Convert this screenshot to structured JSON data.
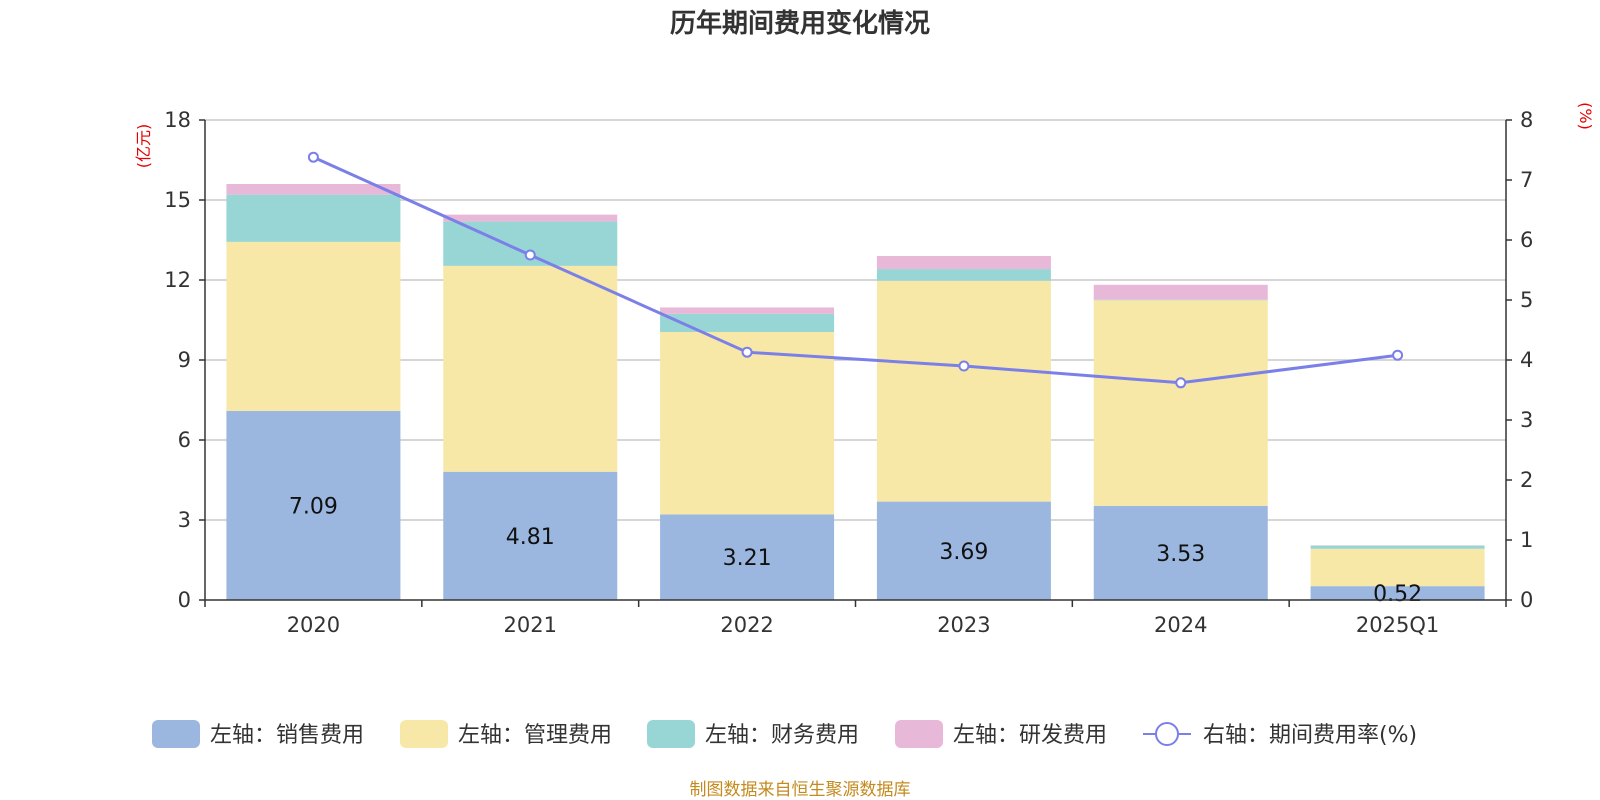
{
  "chart_data": {
    "type": "bar",
    "title": "历年期间费用变化情况",
    "categories": [
      "2020",
      "2021",
      "2022",
      "2023",
      "2024",
      "2025Q1"
    ],
    "left_axis": {
      "unit_label": "(亿元)",
      "ylim": [
        0,
        18
      ],
      "ticks": [
        0,
        3,
        6,
        9,
        12,
        15,
        18
      ]
    },
    "right_axis": {
      "unit_label": "(%)",
      "ylim": [
        0,
        8
      ],
      "ticks": [
        0,
        1,
        2,
        3,
        4,
        5,
        6,
        7,
        8
      ]
    },
    "series": [
      {
        "name": "左轴：销售费用",
        "axis": "left",
        "kind": "bar",
        "color": "#9bb7e0",
        "values": [
          7.09,
          4.81,
          3.21,
          3.69,
          3.53,
          0.52
        ],
        "labels": [
          "7.09",
          "4.81",
          "3.21",
          "3.69",
          "3.53",
          "0.52"
        ]
      },
      {
        "name": "左轴：管理费用",
        "axis": "left",
        "kind": "bar",
        "color": "#f7e8a8",
        "values": [
          6.34,
          7.72,
          6.84,
          8.28,
          7.71,
          1.4
        ]
      },
      {
        "name": "左轴：财务费用",
        "axis": "left",
        "kind": "bar",
        "color": "#98d5d5",
        "values": [
          1.77,
          1.66,
          0.68,
          0.44,
          0.02,
          0.12
        ]
      },
      {
        "name": "左轴：研发费用",
        "axis": "left",
        "kind": "bar",
        "color": "#e8b8d8",
        "values": [
          0.4,
          0.26,
          0.24,
          0.49,
          0.56,
          0.01
        ]
      },
      {
        "name": "右轴：期间费用率(%)",
        "axis": "right",
        "kind": "line",
        "color": "#7b7fe8",
        "values": [
          7.38,
          5.75,
          4.13,
          3.9,
          3.62,
          4.08
        ]
      }
    ]
  },
  "source_text": "制图数据来自恒生聚源数据库"
}
